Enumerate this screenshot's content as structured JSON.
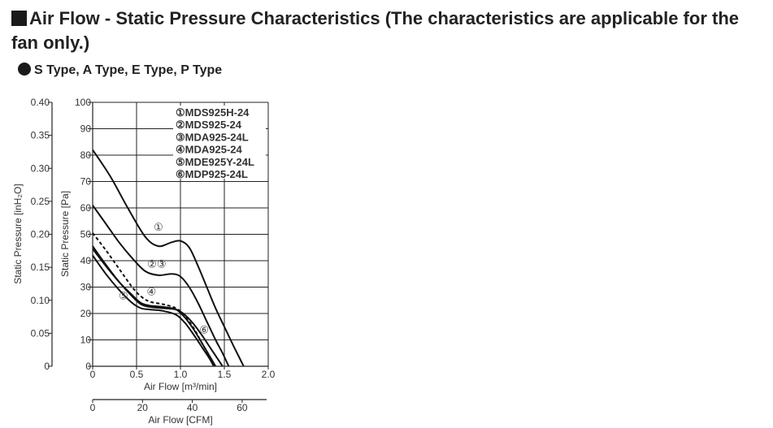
{
  "header": {
    "title": "Air Flow - Static Pressure Characteristics (The characteristics are applicable for the fan only.)",
    "subtitle": "S Type, A Type, E Type, P Type"
  },
  "chart_data": {
    "type": "line",
    "y_inH2O": {
      "label": "Static Pressure [inH₂O]",
      "ticks": [
        "0",
        "0.05",
        "0.10",
        "0.15",
        "0.20",
        "0.25",
        "0.30",
        "0.35",
        "0.40"
      ]
    },
    "y_pa": {
      "label": "Static Pressure [Pa]",
      "range": [
        0,
        100
      ],
      "ticks": [
        "0",
        "10",
        "20",
        "30",
        "40",
        "50",
        "60",
        "70",
        "80",
        "90",
        "100"
      ]
    },
    "x_m3": {
      "label": "Air Flow [m³/min]",
      "range": [
        0,
        2.0
      ],
      "ticks": [
        "0",
        "0.5",
        "1.0",
        "1.5",
        "2.0"
      ]
    },
    "x_cfm": {
      "label": "Air Flow [CFM]",
      "ticks": [
        "0",
        "20",
        "40",
        "60"
      ]
    },
    "grid": true,
    "legend": [
      "①MDS925H-24",
      "②MDS925-24",
      "③MDA925-24L",
      "④MDA925-24",
      "⑤MDE925Y-24L",
      "⑥MDP925-24L"
    ],
    "curve_labels": [
      {
        "text": "①",
        "x": 0.75,
        "y": 53
      },
      {
        "text": "②③",
        "x": 0.73,
        "y": 39
      },
      {
        "text": "④",
        "x": 0.67,
        "y": 28.5
      },
      {
        "text": "⑤",
        "x": 0.35,
        "y": 27
      },
      {
        "text": "⑥",
        "x": 1.27,
        "y": 14
      }
    ],
    "series": [
      {
        "id": "s1",
        "dashed": false,
        "points": [
          [
            0,
            82
          ],
          [
            0.2,
            72
          ],
          [
            0.4,
            60
          ],
          [
            0.6,
            49
          ],
          [
            0.75,
            45.5
          ],
          [
            0.9,
            47
          ],
          [
            1.0,
            47.5
          ],
          [
            1.1,
            45
          ],
          [
            1.2,
            38
          ],
          [
            1.3,
            30
          ],
          [
            1.4,
            22
          ],
          [
            1.5,
            15
          ],
          [
            1.6,
            8
          ],
          [
            1.66,
            4
          ],
          [
            1.72,
            0
          ]
        ]
      },
      {
        "id": "s2",
        "dashed": false,
        "points": [
          [
            0,
            61
          ],
          [
            0.15,
            54
          ],
          [
            0.3,
            47
          ],
          [
            0.45,
            41
          ],
          [
            0.6,
            36
          ],
          [
            0.75,
            34.5
          ],
          [
            0.9,
            35
          ],
          [
            1.0,
            34
          ],
          [
            1.1,
            30
          ],
          [
            1.2,
            24
          ],
          [
            1.3,
            17
          ],
          [
            1.4,
            10
          ],
          [
            1.48,
            5
          ],
          [
            1.55,
            0
          ]
        ]
      },
      {
        "id": "s3",
        "dashed": true,
        "points": [
          [
            0,
            50.5
          ],
          [
            0.15,
            44
          ],
          [
            0.3,
            37
          ],
          [
            0.45,
            30
          ],
          [
            0.55,
            26.5
          ],
          [
            0.65,
            24.5
          ],
          [
            0.8,
            23.5
          ],
          [
            0.95,
            22
          ],
          [
            1.05,
            19
          ],
          [
            1.15,
            14.5
          ],
          [
            1.25,
            8.5
          ],
          [
            1.33,
            4
          ],
          [
            1.39,
            0
          ]
        ]
      },
      {
        "id": "s4",
        "dashed": false,
        "points": [
          [
            0,
            44.5
          ],
          [
            0.15,
            38
          ],
          [
            0.3,
            32
          ],
          [
            0.45,
            27
          ],
          [
            0.55,
            24
          ],
          [
            0.65,
            23
          ],
          [
            0.8,
            22.5
          ],
          [
            0.95,
            21.5
          ],
          [
            1.05,
            18.5
          ],
          [
            1.15,
            14
          ],
          [
            1.25,
            8.5
          ],
          [
            1.33,
            4
          ],
          [
            1.4,
            0
          ]
        ]
      },
      {
        "id": "s5",
        "dashed": false,
        "points": [
          [
            0,
            42
          ],
          [
            0.15,
            35
          ],
          [
            0.3,
            29
          ],
          [
            0.45,
            24
          ],
          [
            0.55,
            22
          ],
          [
            0.65,
            21.5
          ],
          [
            0.8,
            21
          ],
          [
            0.95,
            19.5
          ],
          [
            1.05,
            16.5
          ],
          [
            1.15,
            12
          ],
          [
            1.25,
            7
          ],
          [
            1.33,
            3
          ],
          [
            1.38,
            0
          ]
        ]
      },
      {
        "id": "s6",
        "dashed": false,
        "points": [
          [
            0,
            45.5
          ],
          [
            0.15,
            38.5
          ],
          [
            0.3,
            32
          ],
          [
            0.45,
            26.5
          ],
          [
            0.55,
            23.5
          ],
          [
            0.65,
            22.5
          ],
          [
            0.8,
            22
          ],
          [
            0.95,
            21.5
          ],
          [
            1.05,
            19.5
          ],
          [
            1.15,
            16
          ],
          [
            1.25,
            11.5
          ],
          [
            1.35,
            6.5
          ],
          [
            1.45,
            1.5
          ],
          [
            1.48,
            0
          ]
        ]
      }
    ]
  }
}
